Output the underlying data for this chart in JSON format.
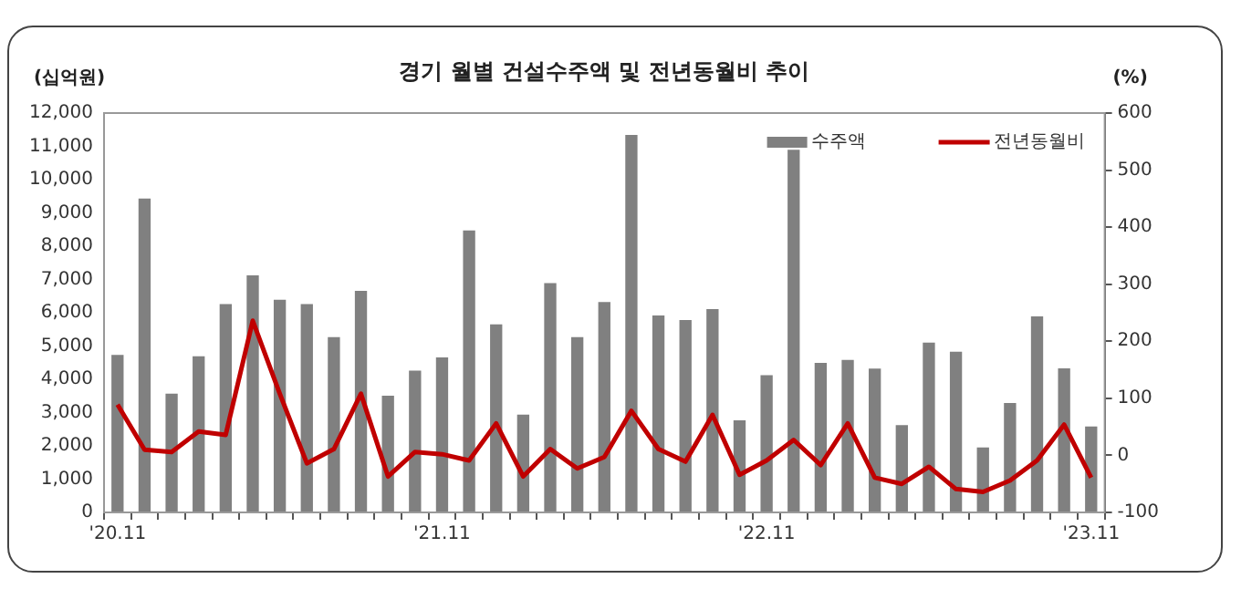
{
  "chart_data": {
    "type": "bar",
    "title": "경기 월별 건설수주액 및 전년동월비 추이",
    "ylabel": "(십억원)",
    "y2label": "(%)",
    "categories": [
      "'20.11",
      null,
      null,
      null,
      null,
      null,
      null,
      null,
      null,
      null,
      null,
      null,
      "'21.11",
      null,
      null,
      null,
      null,
      null,
      null,
      null,
      null,
      null,
      null,
      null,
      "'22.11",
      null,
      null,
      null,
      null,
      null,
      null,
      null,
      null,
      null,
      null,
      null,
      "'23.11"
    ],
    "series": [
      {
        "name": "수주액",
        "color": "#808080",
        "values": [
          4730,
          9430,
          3570,
          4690,
          6260,
          7120,
          6390,
          6260,
          5270,
          6660,
          3510,
          4260,
          4660,
          8470,
          5650,
          2940,
          6890,
          5270,
          6320,
          11340,
          5920,
          5780,
          6110,
          2770,
          4120,
          10900,
          4490,
          4580,
          4320,
          2620,
          5100,
          4830,
          1950,
          3290,
          5890,
          4330,
          2580
        ]
      },
      {
        "name": "전년동월비",
        "type": "line",
        "axis": "y2",
        "color": "#c00000",
        "values": [
          89,
          10,
          6,
          42,
          36,
          236,
          108,
          -14,
          11,
          108,
          -37,
          6,
          2,
          -9,
          56,
          -37,
          11,
          -23,
          -3,
          78,
          11,
          -11,
          71,
          -34,
          -9,
          27,
          -17,
          56,
          -39,
          -50,
          -20,
          -59,
          -64,
          -44,
          -9,
          54,
          -39
        ]
      }
    ],
    "ylim": [
      0,
      12000
    ],
    "yticks": [
      0,
      {
        "value": 1000,
        "label": "1,000"
      },
      {
        "value": 2000,
        "label": "2,000"
      },
      {
        "value": 3000,
        "label": "3,000"
      },
      {
        "value": 4000,
        "label": "4,000"
      },
      {
        "value": 5000,
        "label": "5,000"
      },
      {
        "value": 6000,
        "label": "6,000"
      },
      {
        "value": 7000,
        "label": "7,000"
      },
      {
        "value": 8000,
        "label": "8,000"
      },
      {
        "value": 9000,
        "label": "9,000"
      },
      {
        "value": 10000,
        "label": "10,000"
      },
      {
        "value": 11000,
        "label": "11,000"
      },
      {
        "value": 12000,
        "label": "12,000"
      }
    ],
    "y2lim": [
      -100,
      600
    ],
    "y2ticks": [
      -100,
      0,
      100,
      200,
      300,
      400,
      500,
      600
    ],
    "legend": "top right",
    "marker": "none",
    "line_style": "solid"
  }
}
